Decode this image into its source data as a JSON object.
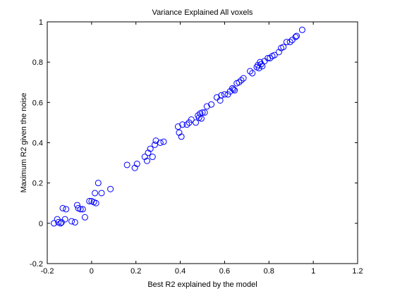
{
  "chart_data": {
    "type": "scatter",
    "title": "Variance Explained All voxels",
    "xlabel": "Best R2 explained by the model",
    "ylabel": "Maximum R2 given the noise",
    "xlim": [
      -0.2,
      1.2
    ],
    "ylim": [
      -0.2,
      1.0
    ],
    "xticks": [
      -0.2,
      0,
      0.2,
      0.4,
      0.6,
      0.8,
      1,
      1.2
    ],
    "yticks": [
      -0.2,
      0,
      0.2,
      0.4,
      0.6,
      0.8,
      1
    ],
    "xtick_labels": [
      "-0.2",
      "0",
      "0.2",
      "0.4",
      "0.6",
      "0.8",
      "1",
      "1.2"
    ],
    "ytick_labels": [
      "-0.2",
      "0",
      "0.2",
      "0.4",
      "0.6",
      "0.8",
      "1"
    ],
    "grid": false,
    "marker": "open-circle",
    "color": "#0000ff",
    "series": [
      {
        "points": [
          [
            -0.17,
            0.0
          ],
          [
            -0.155,
            0.02
          ],
          [
            -0.15,
            0.005
          ],
          [
            -0.14,
            0.0
          ],
          [
            -0.135,
            0.005
          ],
          [
            -0.13,
            0.075
          ],
          [
            -0.12,
            0.02
          ],
          [
            -0.115,
            0.07
          ],
          [
            -0.09,
            0.01
          ],
          [
            -0.075,
            0.005
          ],
          [
            -0.065,
            0.09
          ],
          [
            -0.06,
            0.075
          ],
          [
            -0.05,
            0.07
          ],
          [
            -0.04,
            0.07
          ],
          [
            -0.03,
            0.03
          ],
          [
            -0.01,
            0.11
          ],
          [
            0.0,
            0.11
          ],
          [
            0.01,
            0.105
          ],
          [
            0.015,
            0.15
          ],
          [
            0.02,
            0.1
          ],
          [
            0.03,
            0.2
          ],
          [
            0.045,
            0.15
          ],
          [
            0.085,
            0.17
          ],
          [
            0.16,
            0.29
          ],
          [
            0.195,
            0.275
          ],
          [
            0.205,
            0.295
          ],
          [
            0.24,
            0.33
          ],
          [
            0.25,
            0.31
          ],
          [
            0.255,
            0.35
          ],
          [
            0.265,
            0.37
          ],
          [
            0.275,
            0.33
          ],
          [
            0.285,
            0.39
          ],
          [
            0.29,
            0.41
          ],
          [
            0.31,
            0.4
          ],
          [
            0.325,
            0.405
          ],
          [
            0.39,
            0.48
          ],
          [
            0.395,
            0.45
          ],
          [
            0.405,
            0.43
          ],
          [
            0.41,
            0.49
          ],
          [
            0.43,
            0.49
          ],
          [
            0.44,
            0.5
          ],
          [
            0.45,
            0.515
          ],
          [
            0.47,
            0.5
          ],
          [
            0.48,
            0.535
          ],
          [
            0.485,
            0.525
          ],
          [
            0.49,
            0.545
          ],
          [
            0.495,
            0.52
          ],
          [
            0.5,
            0.55
          ],
          [
            0.51,
            0.55
          ],
          [
            0.52,
            0.58
          ],
          [
            0.54,
            0.59
          ],
          [
            0.565,
            0.625
          ],
          [
            0.58,
            0.61
          ],
          [
            0.585,
            0.635
          ],
          [
            0.6,
            0.64
          ],
          [
            0.615,
            0.64
          ],
          [
            0.625,
            0.655
          ],
          [
            0.635,
            0.67
          ],
          [
            0.64,
            0.665
          ],
          [
            0.645,
            0.66
          ],
          [
            0.655,
            0.695
          ],
          [
            0.665,
            0.7
          ],
          [
            0.675,
            0.71
          ],
          [
            0.685,
            0.72
          ],
          [
            0.715,
            0.755
          ],
          [
            0.725,
            0.745
          ],
          [
            0.745,
            0.775
          ],
          [
            0.75,
            0.785
          ],
          [
            0.755,
            0.77
          ],
          [
            0.76,
            0.8
          ],
          [
            0.765,
            0.79
          ],
          [
            0.77,
            0.78
          ],
          [
            0.78,
            0.805
          ],
          [
            0.795,
            0.82
          ],
          [
            0.805,
            0.82
          ],
          [
            0.815,
            0.83
          ],
          [
            0.825,
            0.835
          ],
          [
            0.845,
            0.85
          ],
          [
            0.855,
            0.87
          ],
          [
            0.865,
            0.875
          ],
          [
            0.88,
            0.9
          ],
          [
            0.895,
            0.9
          ],
          [
            0.905,
            0.91
          ],
          [
            0.92,
            0.925
          ],
          [
            0.925,
            0.93
          ],
          [
            0.95,
            0.96
          ]
        ]
      }
    ]
  }
}
